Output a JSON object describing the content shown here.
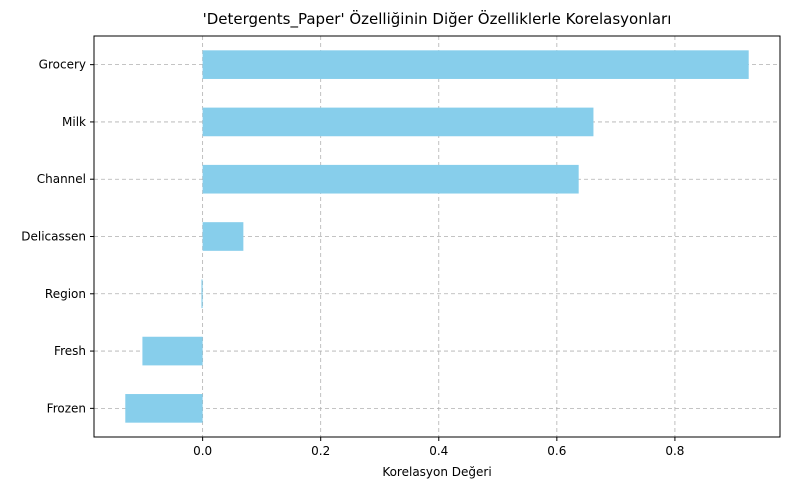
{
  "chart_data": {
    "type": "bar",
    "orientation": "horizontal",
    "title": "'Detergents_Paper' Özelliğinin Diğer Özelliklerle Korelasyonları",
    "xlabel": "Korelasyon Değeri",
    "ylabel": "",
    "categories": [
      "Frozen",
      "Fresh",
      "Region",
      "Delicassen",
      "Channel",
      "Milk",
      "Grocery"
    ],
    "values": [
      -0.131,
      -0.102,
      -0.002,
      0.069,
      0.637,
      0.662,
      0.925
    ],
    "xlim": [
      -0.184,
      0.978
    ],
    "xticks": [
      0.0,
      0.2,
      0.4,
      0.6,
      0.8
    ],
    "xtick_labels": [
      "0.0",
      "0.2",
      "0.4",
      "0.6",
      "0.8"
    ],
    "grid": true,
    "bar_color": "#87CEEB"
  }
}
